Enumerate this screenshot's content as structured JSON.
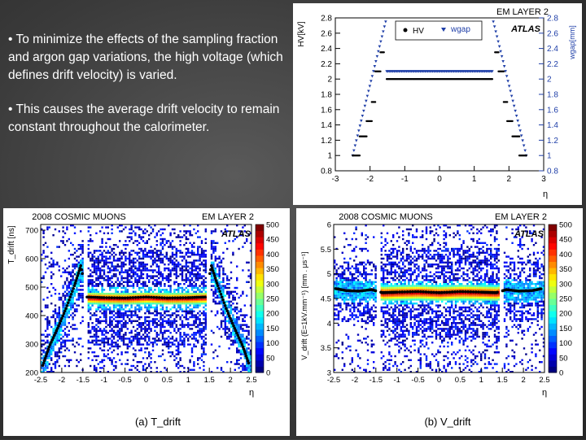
{
  "slide": {
    "bullets": [
      "• To minimize the effects of the sampling fraction and argon gap variations, the high voltage (which defines drift velocity) is varied.",
      "• This causes the average drift velocity to remain constant throughout the calorimeter."
    ]
  },
  "colors": {
    "slide_bg": "#3a3a3a",
    "hv": "#000000",
    "wgap": "#1f3fa8"
  },
  "chart_data": [
    {
      "type": "scatter",
      "title": "EM LAYER 2",
      "logo": "ATLAS",
      "xlabel": "η",
      "ylabel": "HV[kV]",
      "y2label": "wgap[mm]",
      "xlim": [
        -3,
        3
      ],
      "ylim": [
        0.8,
        2.8
      ],
      "y2lim": [
        0.8,
        2.8
      ],
      "x_ticks": [
        "-3",
        "-2",
        "-1",
        "0",
        "1",
        "2",
        "3"
      ],
      "y_ticks": [
        "0.8",
        "1",
        "1.2",
        "1.4",
        "1.6",
        "1.8",
        "2",
        "2.2",
        "2.4",
        "2.6",
        "2.8"
      ],
      "y2_ticks": [
        "0.8",
        "1",
        "1.2",
        "1.4",
        "1.6",
        "1.8",
        "2",
        "2.2",
        "2.4",
        "2.6",
        "2.8"
      ],
      "legend": {
        "placement": "top-center",
        "hv": "HV",
        "wgap": "wgap"
      },
      "series": [
        {
          "name": "HV",
          "marker": "dot",
          "segments": [
            {
              "x": [
                -2.5,
                -2.3
              ],
              "y": 1.0
            },
            {
              "x": [
                -2.3,
                -2.1
              ],
              "y": 1.25
            },
            {
              "x": [
                -2.1,
                -1.95
              ],
              "y": 1.45
            },
            {
              "x": [
                -1.95,
                -1.85
              ],
              "y": 1.7
            },
            {
              "x": [
                -1.85,
                -1.7
              ],
              "y": 2.1
            },
            {
              "x": [
                -1.7,
                -1.6
              ],
              "y": 2.35
            },
            {
              "x": [
                -1.52,
                1.52
              ],
              "y": 2.0
            },
            {
              "x": [
                1.6,
                1.7
              ],
              "y": 2.35
            },
            {
              "x": [
                1.7,
                1.85
              ],
              "y": 2.1
            },
            {
              "x": [
                1.85,
                1.95
              ],
              "y": 1.7
            },
            {
              "x": [
                1.95,
                2.1
              ],
              "y": 1.45
            },
            {
              "x": [
                2.1,
                2.3
              ],
              "y": 1.25
            },
            {
              "x": [
                2.3,
                2.5
              ],
              "y": 1.0
            }
          ]
        },
        {
          "name": "wgap",
          "marker": "triangle",
          "segments": [
            {
              "x": [
                -2.5,
                -1.55
              ],
              "y": [
                1.0,
                2.75
              ]
            },
            {
              "x": [
                -1.52,
                1.52
              ],
              "y": [
                2.1,
                2.1
              ]
            },
            {
              "x": [
                1.55,
                2.5
              ],
              "y": [
                2.75,
                1.0
              ]
            }
          ]
        }
      ]
    },
    {
      "type": "heatmap",
      "title": "2008 COSMIC MUONS",
      "subtitle": "EM LAYER 2",
      "logo": "ATLAS",
      "caption": "(a) T_drift",
      "xlabel": "η",
      "ylabel": "T_drift [ns]",
      "xlim": [
        -2.5,
        2.5
      ],
      "ylim": [
        200,
        720
      ],
      "x_ticks": [
        "-2.5",
        "-2",
        "-1.5",
        "-1",
        "-0.5",
        "0",
        "0.5",
        "1",
        "1.5",
        "2",
        "2.5"
      ],
      "y_ticks": [
        "200",
        "300",
        "400",
        "500",
        "600",
        "700"
      ],
      "colorbar_ticks": [
        "0",
        "50",
        "100",
        "150",
        "200",
        "250",
        "300",
        "350",
        "400",
        "450",
        "500"
      ],
      "profile": {
        "x": [
          -2.45,
          -2.3,
          -2.1,
          -1.9,
          -1.7,
          -1.55,
          -1.4,
          -1.0,
          -0.5,
          0.0,
          0.5,
          1.0,
          1.4,
          1.55,
          1.7,
          1.9,
          2.1,
          2.3,
          2.45
        ],
        "y": [
          225,
          290,
          355,
          425,
          505,
          575,
          465,
          463,
          462,
          465,
          462,
          463,
          465,
          575,
          505,
          425,
          355,
          290,
          225
        ]
      }
    },
    {
      "type": "heatmap",
      "title": "2008 COSMIC MUONS",
      "subtitle": "EM LAYER 2",
      "logo": "ATLAS",
      "caption": "(b) V_drift",
      "xlabel": "η",
      "ylabel": "V_drift (E=1kV.mm⁻¹) [mm . μs⁻¹]",
      "xlim": [
        -2.5,
        2.5
      ],
      "ylim": [
        3,
        6
      ],
      "x_ticks": [
        "-2.5",
        "-2",
        "-1.5",
        "-1",
        "-0.5",
        "0",
        "0.5",
        "1",
        "1.5",
        "2",
        "2.5"
      ],
      "y_ticks": [
        "3",
        "3.5",
        "4",
        "4.5",
        "5",
        "5.5",
        "6"
      ],
      "colorbar_ticks": [
        "0",
        "50",
        "100",
        "150",
        "200",
        "250",
        "300",
        "350",
        "400",
        "450",
        "500"
      ],
      "profile": {
        "x": [
          -2.45,
          -2.2,
          -1.9,
          -1.6,
          -1.35,
          -1.0,
          -0.5,
          0.0,
          0.5,
          1.0,
          1.35,
          1.6,
          1.9,
          2.2,
          2.45
        ],
        "y": [
          4.7,
          4.66,
          4.65,
          4.68,
          4.62,
          4.63,
          4.64,
          4.62,
          4.64,
          4.63,
          4.62,
          4.68,
          4.65,
          4.66,
          4.7
        ]
      }
    }
  ]
}
